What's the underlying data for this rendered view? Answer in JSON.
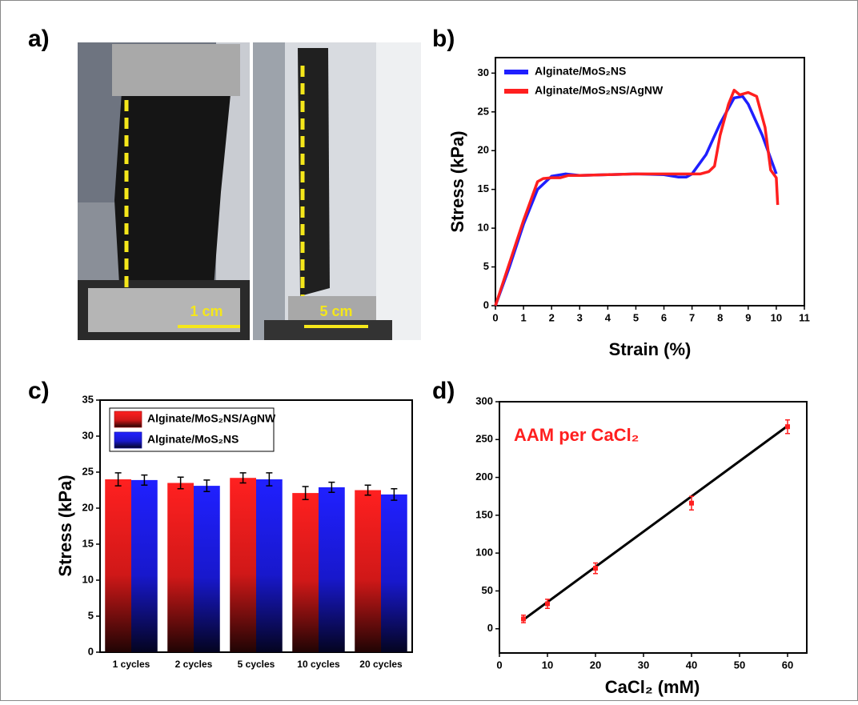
{
  "panel_a": {
    "label": "a)",
    "scale_bars": [
      "1 cm",
      "5 cm"
    ]
  },
  "chart_data": [
    {
      "type": "line",
      "label": "b)",
      "xlabel": "Strain (%)",
      "ylabel": "Stress (kPa)",
      "xlim": [
        0,
        11
      ],
      "ylim": [
        0,
        32
      ],
      "xticks": [
        0,
        1,
        2,
        3,
        4,
        5,
        6,
        7,
        8,
        9,
        10,
        11
      ],
      "yticks": [
        0,
        5,
        10,
        15,
        20,
        25,
        30
      ],
      "series": [
        {
          "name": "Alginate/MoS₂NS",
          "color": "#1f1fff",
          "x": [
            0,
            0.5,
            1,
            1.5,
            2,
            2.5,
            3,
            4,
            5,
            6,
            6.5,
            6.8,
            7,
            7.5,
            8,
            8.5,
            8.8,
            9,
            9.5,
            10
          ],
          "values": [
            0,
            5,
            10.5,
            15,
            16.7,
            17,
            16.8,
            16.9,
            17,
            16.9,
            16.6,
            16.6,
            17,
            19.5,
            23.5,
            26.8,
            27,
            26,
            22,
            17
          ]
        },
        {
          "name": "Alginate/MoS₂NS/AgNW",
          "color": "#ff1f1f",
          "x": [
            0,
            0.5,
            1,
            1.5,
            1.7,
            2,
            2.3,
            2.6,
            3,
            4,
            5,
            6,
            7,
            7.3,
            7.6,
            7.8,
            8,
            8.3,
            8.5,
            8.7,
            9,
            9.3,
            9.6,
            9.8,
            10,
            10.05
          ],
          "values": [
            0,
            5.5,
            11,
            16,
            16.4,
            16.5,
            16.5,
            16.8,
            16.8,
            16.9,
            17,
            17,
            17,
            17,
            17.3,
            18,
            22,
            26,
            27.8,
            27.2,
            27.5,
            27,
            23,
            17.5,
            16.5,
            13
          ]
        }
      ]
    },
    {
      "type": "bar",
      "label": "c)",
      "ylabel": "Stress (kPa)",
      "categories": [
        "1 cycles",
        "2 cycles",
        "5 cycles",
        "10 cycles",
        "20 cycles"
      ],
      "ylim": [
        0,
        35
      ],
      "yticks": [
        0,
        5,
        10,
        15,
        20,
        25,
        30,
        35
      ],
      "series": [
        {
          "name": "Alginate/MoS₂NS/AgNW",
          "color": "#ff2020",
          "values": [
            24,
            23.5,
            24.2,
            22.1,
            22.5
          ],
          "errors": [
            0.9,
            0.8,
            0.7,
            0.9,
            0.7
          ]
        },
        {
          "name": "Alginate/MoS₂NS",
          "color": "#2020ff",
          "values": [
            23.9,
            23.1,
            24,
            22.9,
            21.9
          ],
          "errors": [
            0.7,
            0.8,
            0.9,
            0.7,
            0.8
          ]
        }
      ]
    },
    {
      "type": "scatter",
      "label": "d)",
      "xlabel": "CaCl₂ (mM)",
      "annotation": "AAM per CaCl₂",
      "xlim": [
        0,
        64
      ],
      "ylim": [
        -32,
        300
      ],
      "xticks": [
        0,
        10,
        20,
        30,
        40,
        50,
        60
      ],
      "yticks": [
        0,
        50,
        100,
        150,
        200,
        250,
        300
      ],
      "color": "#ff1f1f",
      "x": [
        5,
        10,
        20,
        40,
        60
      ],
      "values": [
        13,
        33,
        80,
        166,
        267
      ],
      "errors": [
        5,
        6,
        7,
        9,
        9
      ],
      "fit": {
        "x": [
          5,
          60
        ],
        "values": [
          12,
          268
        ]
      }
    }
  ]
}
